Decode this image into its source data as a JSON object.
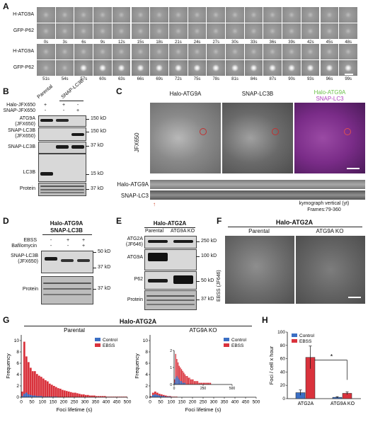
{
  "panel_a": {
    "label": "A",
    "row_labels_1": [
      "H-ATG9A",
      "GFP-P62"
    ],
    "row_labels_2": [
      "H-ATG9A",
      "GFP-P62"
    ],
    "times_1": [
      "0s",
      "3s",
      "6s",
      "9s",
      "12s",
      "15s",
      "18s",
      "21s",
      "24s",
      "27s",
      "30s",
      "33s",
      "36s",
      "39s",
      "42s",
      "45s",
      "48s"
    ],
    "times_2": [
      "51s",
      "54s",
      "57s",
      "60s",
      "63s",
      "66s",
      "69s",
      "72s",
      "75s",
      "78s",
      "81s",
      "84s",
      "87s",
      "90s",
      "93s",
      "96s",
      "99s"
    ]
  },
  "panel_b": {
    "label": "B",
    "col_parental": "Parental",
    "col_snap": "SNAP-LC3B",
    "row_halo": "Halo-JFX650",
    "row_snap": "SNAP-JFX650",
    "signs_halo": [
      "+",
      "+",
      "-"
    ],
    "signs_snap": [
      "-",
      "-",
      "+"
    ],
    "blot_labels": [
      "ATG9A\n(JFX650)",
      "SNAP-LC3B\n(JFX650)",
      "SNAP-LC3B",
      "LC3B",
      "Protein"
    ],
    "mw": [
      "150 kD",
      "150 kD",
      "37 kD",
      "15 kD",
      "37 kD"
    ]
  },
  "panel_c": {
    "label": "C",
    "titles": [
      "Halo-ATG9A",
      "SNAP-LC3B"
    ],
    "merge_title_1": "Halo-ATG9A",
    "merge_title_2": "SNAP-LC3",
    "side_label": "JFX650",
    "kymo_labels": [
      "Halo-ATG9A",
      "SNAP-LC3"
    ],
    "kymo_caption_1": "kymograph vertical (yt)",
    "kymo_caption_2": "Frames:79-360",
    "colors": {
      "green": "#6cc04a",
      "magenta": "#b040c0"
    }
  },
  "panel_d": {
    "label": "D",
    "title_1": "Halo-ATG9A",
    "title_2": "SNAP-LC3B",
    "row_ebss": "EBSS",
    "row_baf": "Bafilomycin",
    "signs_ebss": [
      "-",
      "+",
      "+"
    ],
    "signs_baf": [
      "-",
      "-",
      "+"
    ],
    "blot_labels": [
      "SNAP-LC3B\n(JFX650)",
      "Protein"
    ],
    "mw": [
      "50 kD",
      "37 kD",
      "37 kD"
    ]
  },
  "panel_e": {
    "label": "E",
    "title": "Halo-ATG2A",
    "cols": [
      "Parental",
      "ATG9A KO"
    ],
    "blot_labels": [
      "ATG2A\n(JF646)",
      "ATG9A",
      "P62",
      "Protein"
    ],
    "mw": [
      "250 kD",
      "100 kD",
      "50 kD",
      "37 kD"
    ]
  },
  "panel_f": {
    "label": "F",
    "title": "Halo-ATG2A",
    "cols": [
      "Parental",
      "ATG9A KO"
    ],
    "side_label": "EBSS (JF646)"
  },
  "panel_g": {
    "label": "G",
    "title": "Halo-ATG2A",
    "subtitles": [
      "Parental",
      "ATG9A KO"
    ],
    "legend": [
      "Control",
      "EBSS"
    ],
    "colors": {
      "control": "#3b6fc4",
      "ebss": "#d9323c"
    },
    "chart_data": [
      {
        "type": "bar",
        "title": "Parental",
        "xlabel": "Foci lifetime (s)",
        "ylabel": "Frequency",
        "xlim": [
          0,
          500
        ],
        "ylim": [
          0,
          11
        ],
        "xticks": [
          0,
          50,
          100,
          150,
          200,
          250,
          300,
          350,
          400,
          450,
          500
        ],
        "yticks": [
          0,
          2,
          4,
          6,
          8,
          10
        ],
        "bin_width": 10,
        "series": [
          {
            "name": "Control",
            "values": [
              0.2,
              0.6,
              0.8,
              0.5,
              0.4,
              0.3,
              0.3,
              0.2,
              0.2,
              0.2,
              0.1,
              0.1,
              0.1,
              0.1,
              0.1,
              0.1,
              0.1,
              0,
              0,
              0,
              0,
              0,
              0,
              0,
              0,
              0,
              0,
              0,
              0,
              0,
              0,
              0,
              0,
              0,
              0,
              0,
              0,
              0,
              0,
              0,
              0,
              0,
              0,
              0,
              0,
              0,
              0,
              0,
              0,
              0
            ]
          },
          {
            "name": "EBSS",
            "values": [
              1.0,
              9.8,
              7.2,
              6.2,
              5.2,
              4.6,
              4.6,
              4.1,
              3.8,
              3.6,
              3.3,
              3.0,
              2.8,
              2.4,
              2.2,
              2.0,
              1.8,
              1.6,
              1.5,
              1.3,
              1.2,
              1.1,
              1.0,
              0.9,
              0.8,
              0.8,
              0.7,
              0.6,
              0.5,
              0.5,
              0.4,
              0.4,
              0.3,
              0.3,
              0.3,
              0.2,
              0.2,
              0.2,
              0.2,
              0.2,
              0.1,
              0.1,
              0.1,
              0.1,
              0.1,
              0.1,
              0.1,
              0.1,
              0.1,
              0.1
            ]
          }
        ]
      },
      {
        "type": "bar",
        "title": "ATG9A KO",
        "xlabel": "Foci lifetime (s)",
        "ylabel": "Frequency",
        "xlim": [
          0,
          500
        ],
        "ylim": [
          0,
          11
        ],
        "xticks": [
          0,
          50,
          100,
          150,
          200,
          250,
          300,
          350,
          400,
          450,
          500
        ],
        "yticks": [
          0,
          2,
          4,
          6,
          8,
          10
        ],
        "bin_width": 10,
        "series": [
          {
            "name": "Control",
            "values": [
              0.1,
              0.4,
              0.5,
              0.4,
              0.3,
              0.2,
              0.2,
              0.1,
              0.1,
              0.1,
              0,
              0,
              0,
              0,
              0,
              0,
              0,
              0,
              0,
              0,
              0,
              0,
              0,
              0,
              0,
              0,
              0,
              0,
              0,
              0,
              0,
              0,
              0,
              0,
              0,
              0,
              0,
              0,
              0,
              0,
              0,
              0,
              0,
              0,
              0,
              0,
              0,
              0,
              0,
              0
            ]
          },
          {
            "name": "EBSS",
            "values": [
              0.2,
              0.8,
              1.0,
              0.8,
              0.6,
              0.5,
              0.4,
              0.3,
              0.2,
              0.2,
              0.1,
              0.1,
              0.1,
              0,
              0,
              0,
              0,
              0,
              0,
              0,
              0,
              0,
              0,
              0,
              0,
              0,
              0,
              0,
              0,
              0,
              0,
              0,
              0,
              0,
              0,
              0,
              0,
              0,
              0,
              0,
              0,
              0,
              0,
              0,
              0,
              0,
              0,
              0,
              0,
              0
            ]
          }
        ]
      },
      {
        "type": "bar",
        "title": "",
        "xlabel": "",
        "ylabel": "",
        "inset": true,
        "xlim": [
          0,
          500
        ],
        "ylim": [
          0,
          2
        ],
        "xticks": [
          0,
          250,
          500
        ],
        "yticks": [
          0,
          1,
          2
        ],
        "bin_width": 10,
        "series": [
          {
            "name": "Control",
            "values": [
              0.1,
              0.4,
              0.5,
              0.4,
              0.3,
              0.2,
              0.2,
              0.1,
              0.1,
              0.1,
              0,
              0,
              0,
              0,
              0,
              0,
              0,
              0,
              0,
              0,
              0,
              0,
              0,
              0,
              0,
              0,
              0,
              0,
              0,
              0,
              0,
              0,
              0,
              0,
              0,
              0,
              0,
              0,
              0,
              0,
              0,
              0,
              0,
              0,
              0,
              0,
              0,
              0,
              0,
              0
            ]
          },
          {
            "name": "EBSS",
            "values": [
              0.3,
              1.8,
              1.5,
              1.3,
              1.1,
              1.0,
              0.9,
              0.8,
              0.7,
              0.6,
              0.5,
              0.5,
              0.4,
              0.4,
              0.3,
              0.3,
              0.3,
              0.2,
              0.2,
              0.2,
              0.2,
              0.1,
              0.1,
              0.1,
              0.1,
              0.1,
              0.1,
              0.1,
              0.1,
              0.1,
              0.1,
              0.1,
              0,
              0,
              0,
              0,
              0,
              0,
              0,
              0,
              0,
              0,
              0,
              0,
              0,
              0,
              0,
              0,
              0,
              0
            ]
          }
        ]
      }
    ]
  },
  "panel_h": {
    "label": "H",
    "legend": [
      "Control",
      "EBSS"
    ],
    "sig": "*",
    "chart_data": {
      "type": "bar",
      "categories": [
        "ATG2A",
        "ATG9A KO"
      ],
      "ylabel": "Foci / cell x hour",
      "ylim": [
        0,
        100
      ],
      "yticks": [
        0,
        20,
        40,
        60,
        80,
        100
      ],
      "series": [
        {
          "name": "Control",
          "values": [
            9,
            2
          ],
          "errors": [
            4,
            1
          ]
        },
        {
          "name": "EBSS",
          "values": [
            62,
            8
          ],
          "errors": [
            17,
            2
          ]
        }
      ]
    }
  }
}
